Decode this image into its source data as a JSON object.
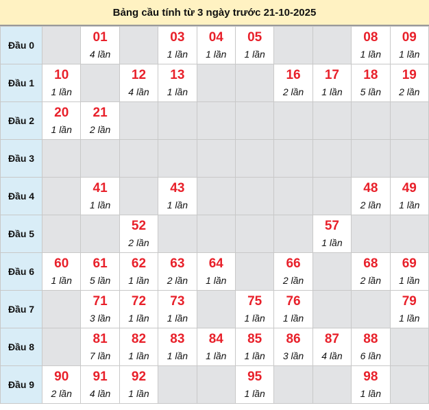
{
  "title": "Bảng cầu tính từ 3 ngày trước 21-10-2025",
  "colors": {
    "number": "#e8202a",
    "label_bg": "#d9edf7",
    "empty_bg": "#e2e3e5",
    "title_bg": "#fff2c2"
  },
  "rows": [
    {
      "label": "Đầu 0",
      "cells": [
        null,
        {
          "num": "01",
          "count": "4 lần"
        },
        null,
        {
          "num": "03",
          "count": "1 lần"
        },
        {
          "num": "04",
          "count": "1 lần"
        },
        {
          "num": "05",
          "count": "1 lần"
        },
        null,
        null,
        {
          "num": "08",
          "count": "1 lần"
        },
        {
          "num": "09",
          "count": "1 lần"
        }
      ]
    },
    {
      "label": "Đầu 1",
      "cells": [
        {
          "num": "10",
          "count": "1 lần"
        },
        null,
        {
          "num": "12",
          "count": "4 lần"
        },
        {
          "num": "13",
          "count": "1 lần"
        },
        null,
        null,
        {
          "num": "16",
          "count": "2 lần"
        },
        {
          "num": "17",
          "count": "1 lần"
        },
        {
          "num": "18",
          "count": "5 lần"
        },
        {
          "num": "19",
          "count": "2 lần"
        }
      ]
    },
    {
      "label": "Đầu 2",
      "cells": [
        {
          "num": "20",
          "count": "1 lần"
        },
        {
          "num": "21",
          "count": "2 lần"
        },
        null,
        null,
        null,
        null,
        null,
        null,
        null,
        null
      ]
    },
    {
      "label": "Đầu 3",
      "cells": [
        null,
        null,
        null,
        null,
        null,
        null,
        null,
        null,
        null,
        null
      ]
    },
    {
      "label": "Đầu 4",
      "cells": [
        null,
        {
          "num": "41",
          "count": "1 lần"
        },
        null,
        {
          "num": "43",
          "count": "1 lần"
        },
        null,
        null,
        null,
        null,
        {
          "num": "48",
          "count": "2 lần"
        },
        {
          "num": "49",
          "count": "1 lần"
        }
      ]
    },
    {
      "label": "Đầu 5",
      "cells": [
        null,
        null,
        {
          "num": "52",
          "count": "2 lần"
        },
        null,
        null,
        null,
        null,
        {
          "num": "57",
          "count": "1 lần"
        },
        null,
        null
      ]
    },
    {
      "label": "Đầu 6",
      "cells": [
        {
          "num": "60",
          "count": "1 lần"
        },
        {
          "num": "61",
          "count": "5 lần"
        },
        {
          "num": "62",
          "count": "1 lần"
        },
        {
          "num": "63",
          "count": "2 lần"
        },
        {
          "num": "64",
          "count": "1 lần"
        },
        null,
        {
          "num": "66",
          "count": "2 lần"
        },
        null,
        {
          "num": "68",
          "count": "2 lần"
        },
        {
          "num": "69",
          "count": "1 lần"
        }
      ]
    },
    {
      "label": "Đầu 7",
      "cells": [
        null,
        {
          "num": "71",
          "count": "3 lần"
        },
        {
          "num": "72",
          "count": "1 lần"
        },
        {
          "num": "73",
          "count": "1 lần"
        },
        null,
        {
          "num": "75",
          "count": "1 lần"
        },
        {
          "num": "76",
          "count": "1 lần"
        },
        null,
        null,
        {
          "num": "79",
          "count": "1 lần"
        }
      ]
    },
    {
      "label": "Đầu 8",
      "cells": [
        null,
        {
          "num": "81",
          "count": "7 lần"
        },
        {
          "num": "82",
          "count": "1 lần"
        },
        {
          "num": "83",
          "count": "1 lần"
        },
        {
          "num": "84",
          "count": "1 lần"
        },
        {
          "num": "85",
          "count": "1 lần"
        },
        {
          "num": "86",
          "count": "3 lần"
        },
        {
          "num": "87",
          "count": "4 lần"
        },
        {
          "num": "88",
          "count": "6 lần"
        },
        null
      ]
    },
    {
      "label": "Đầu 9",
      "cells": [
        {
          "num": "90",
          "count": "2 lần"
        },
        {
          "num": "91",
          "count": "4 lần"
        },
        {
          "num": "92",
          "count": "1 lần"
        },
        null,
        null,
        {
          "num": "95",
          "count": "1 lần"
        },
        null,
        null,
        {
          "num": "98",
          "count": "1 lần"
        },
        null
      ]
    }
  ]
}
